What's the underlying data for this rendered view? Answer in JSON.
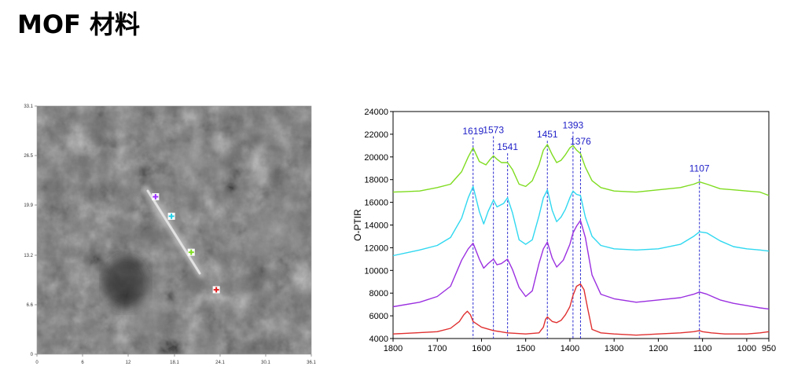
{
  "page": {
    "title": "MOF 材料"
  },
  "chart_data": [
    {
      "type": "image",
      "title": "",
      "xlabel": "",
      "ylabel": "",
      "xlim": [
        0,
        36.1
      ],
      "ylim": [
        0,
        33.1
      ],
      "x_ticks": [
        "0",
        "6",
        "12",
        "18.1",
        "24.1",
        "30.1",
        "36.1"
      ],
      "y_ticks": [
        "0",
        "6.6",
        "13.2",
        "19.9",
        "26.5",
        "33.1"
      ],
      "markers": [
        {
          "color": "#9b30ff",
          "x": 15.6,
          "y": 21.0
        },
        {
          "color": "#20d0e8",
          "x": 17.7,
          "y": 18.4
        },
        {
          "color": "#7fdc20",
          "x": 20.3,
          "y": 13.6
        },
        {
          "color": "#e02020",
          "x": 23.6,
          "y": 8.6
        }
      ]
    },
    {
      "type": "line",
      "title": "",
      "xlabel": "",
      "ylabel": "O-PTIR",
      "xlim": [
        1800,
        950
      ],
      "ylim": [
        4000,
        24000
      ],
      "x_ticks": [
        1800,
        1700,
        1600,
        1500,
        1400,
        1300,
        1200,
        1100,
        1000,
        950
      ],
      "y_ticks": [
        4000,
        6000,
        8000,
        10000,
        12000,
        14000,
        16000,
        18000,
        20000,
        22000,
        24000
      ],
      "grid": false,
      "peaks": [
        {
          "x": 1619,
          "label": "1619",
          "label_y": 22000
        },
        {
          "x": 1573,
          "label": "1573",
          "label_y": 22100
        },
        {
          "x": 1541,
          "label": "1541",
          "label_y": 20600
        },
        {
          "x": 1451,
          "label": "1451",
          "label_y": 21700
        },
        {
          "x": 1393,
          "label": "1393",
          "label_y": 22500
        },
        {
          "x": 1376,
          "label": "1376",
          "label_y": 21100
        },
        {
          "x": 1107,
          "label": "1107",
          "label_y": 18700
        }
      ],
      "series": [
        {
          "color": "#7fdc20",
          "x": [
            1800,
            1740,
            1700,
            1670,
            1645,
            1630,
            1619,
            1605,
            1590,
            1580,
            1573,
            1565,
            1555,
            1541,
            1530,
            1515,
            1500,
            1485,
            1470,
            1460,
            1451,
            1440,
            1430,
            1420,
            1410,
            1400,
            1393,
            1385,
            1376,
            1365,
            1350,
            1330,
            1300,
            1250,
            1200,
            1150,
            1120,
            1107,
            1090,
            1060,
            1030,
            1000,
            970,
            950
          ],
          "y": [
            16900,
            17000,
            17300,
            17600,
            18700,
            20000,
            20800,
            19600,
            19300,
            19800,
            20100,
            19800,
            19500,
            19500,
            18900,
            17600,
            17400,
            17900,
            19300,
            20600,
            21100,
            20200,
            19500,
            19700,
            20200,
            20800,
            21000,
            20600,
            20300,
            19100,
            17900,
            17300,
            17000,
            16900,
            17100,
            17300,
            17600,
            17800,
            17600,
            17200,
            17100,
            17000,
            16900,
            16600
          ]
        },
        {
          "color": "#30d8f0",
          "x": [
            1800,
            1740,
            1700,
            1670,
            1645,
            1630,
            1619,
            1605,
            1595,
            1585,
            1573,
            1565,
            1550,
            1541,
            1530,
            1515,
            1500,
            1485,
            1470,
            1460,
            1451,
            1440,
            1430,
            1420,
            1410,
            1400,
            1393,
            1385,
            1376,
            1365,
            1350,
            1330,
            1300,
            1250,
            1200,
            1150,
            1120,
            1107,
            1090,
            1060,
            1030,
            1000,
            970,
            950
          ],
          "y": [
            11300,
            11800,
            12200,
            12900,
            14600,
            16400,
            17400,
            15200,
            14100,
            15200,
            16200,
            15600,
            15900,
            16400,
            15100,
            12700,
            12300,
            12700,
            14800,
            16400,
            17100,
            15300,
            14300,
            14700,
            15400,
            16400,
            17000,
            16700,
            16600,
            14700,
            13000,
            12200,
            11900,
            11800,
            11900,
            12300,
            13000,
            13400,
            13300,
            12600,
            12100,
            11900,
            11800,
            11700
          ]
        },
        {
          "color": "#9b30e0",
          "x": [
            1800,
            1740,
            1700,
            1670,
            1645,
            1630,
            1619,
            1605,
            1595,
            1585,
            1573,
            1565,
            1555,
            1541,
            1530,
            1515,
            1500,
            1485,
            1470,
            1460,
            1451,
            1440,
            1430,
            1415,
            1400,
            1393,
            1385,
            1376,
            1365,
            1350,
            1330,
            1300,
            1250,
            1200,
            1150,
            1120,
            1107,
            1090,
            1060,
            1030,
            1000,
            970,
            950
          ],
          "y": [
            6800,
            7200,
            7700,
            8600,
            10900,
            11900,
            12400,
            11000,
            10200,
            10600,
            11000,
            10500,
            10600,
            11000,
            10100,
            8500,
            7700,
            8200,
            10600,
            11900,
            12500,
            11100,
            10300,
            10900,
            12300,
            13300,
            13900,
            14400,
            12900,
            9600,
            7900,
            7500,
            7200,
            7400,
            7600,
            7900,
            8100,
            7900,
            7400,
            7100,
            6900,
            6700,
            6600
          ]
        },
        {
          "color": "#e03030",
          "x": [
            1800,
            1750,
            1700,
            1670,
            1650,
            1640,
            1632,
            1625,
            1619,
            1600,
            1573,
            1541,
            1500,
            1470,
            1460,
            1455,
            1451,
            1440,
            1430,
            1420,
            1410,
            1400,
            1393,
            1385,
            1376,
            1368,
            1360,
            1350,
            1330,
            1300,
            1250,
            1200,
            1150,
            1120,
            1107,
            1100,
            1080,
            1050,
            1000,
            970,
            950
          ],
          "y": [
            4400,
            4500,
            4600,
            4900,
            5500,
            6100,
            6400,
            6100,
            5500,
            5000,
            4700,
            4500,
            4400,
            4500,
            5000,
            5700,
            5900,
            5500,
            5400,
            5600,
            6100,
            6800,
            7800,
            8600,
            8800,
            8300,
            6700,
            4800,
            4500,
            4400,
            4300,
            4400,
            4500,
            4600,
            4700,
            4600,
            4500,
            4400,
            4400,
            4500,
            4600
          ]
        }
      ]
    }
  ]
}
